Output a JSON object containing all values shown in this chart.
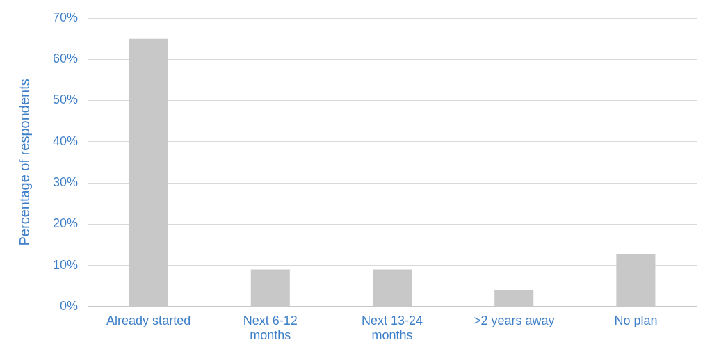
{
  "chart_data": {
    "type": "bar",
    "categories": [
      "Already started",
      "Next 6-12 months",
      "Next 13-24 months",
      ">2 years away",
      "No plan"
    ],
    "values": [
      65,
      9,
      9,
      4,
      12.7
    ],
    "color": "#c8c8c8",
    "ylabel": "Percentage of respondents",
    "ylim": [
      0,
      70
    ],
    "yticks": [
      {
        "value": 0,
        "label": "0%"
      },
      {
        "value": 10,
        "label": "10%"
      },
      {
        "value": 20,
        "label": "20%"
      },
      {
        "value": 30,
        "label": "30%"
      },
      {
        "value": 40,
        "label": "40%"
      },
      {
        "value": 50,
        "label": "50%"
      },
      {
        "value": 60,
        "label": "60%"
      },
      {
        "value": 70,
        "label": "70%"
      }
    ],
    "grid": "y",
    "legend": false
  }
}
